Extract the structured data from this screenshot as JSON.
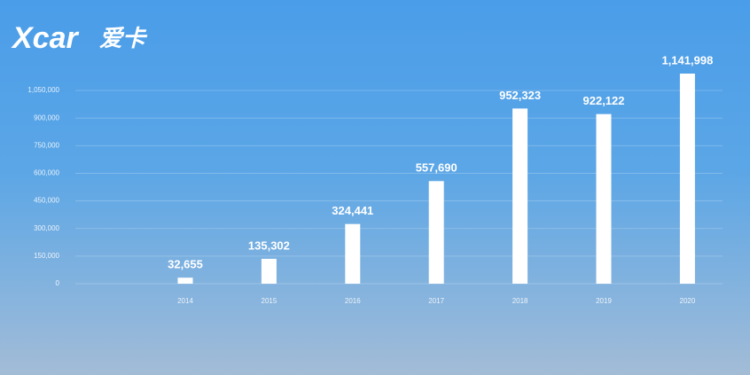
{
  "logo": {
    "brand": "Xcar",
    "chinese": "爱卡"
  },
  "chart_data": {
    "type": "bar",
    "categories": [
      "2014",
      "2015",
      "2016",
      "2017",
      "2018",
      "2019",
      "2020"
    ],
    "values": [
      32655,
      135302,
      324441,
      557690,
      952323,
      922122,
      1141998
    ],
    "value_labels": [
      "32,655",
      "135,302",
      "324,441",
      "557,690",
      "952,323",
      "922,122",
      "1,141,998"
    ],
    "color": "#ffffff",
    "ylim": [
      0,
      1200000
    ],
    "yticks": [
      0,
      {
        "value": 150000,
        "label": "150,000"
      },
      {
        "value": 300000,
        "label": "300,000"
      },
      {
        "value": 450000,
        "label": "450,000"
      },
      {
        "value": 600000,
        "label": "600,000"
      },
      {
        "value": 750000,
        "label": "750,000"
      },
      {
        "value": 900000,
        "label": "900,000"
      },
      {
        "value": 1050000,
        "label": "1,050,000"
      }
    ],
    "grid": true
  }
}
